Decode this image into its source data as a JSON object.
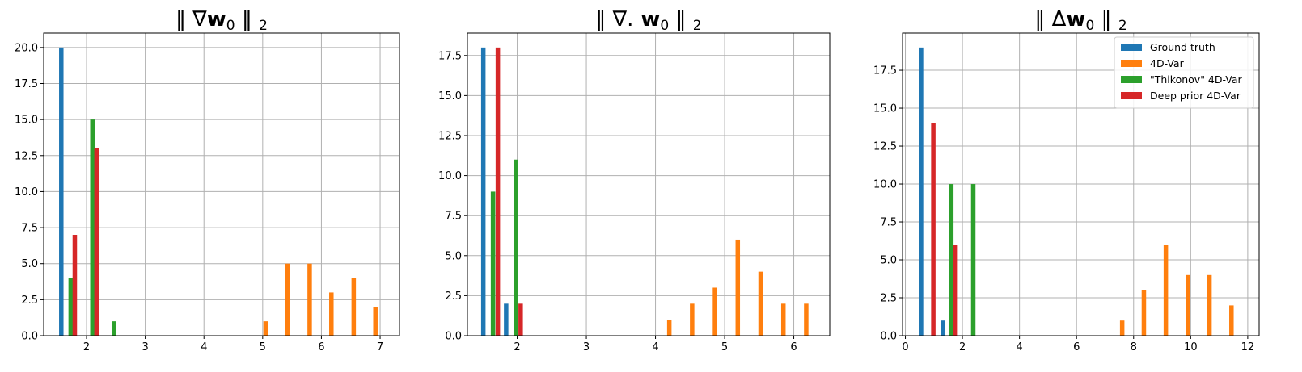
{
  "colors": {
    "ground_truth": "#1f77b4",
    "fourdvar": "#ff7f0e",
    "thikonov": "#2ca02c",
    "deep_prior": "#d62728",
    "grid": "#b0b0b0"
  },
  "chart_data": [
    {
      "type": "bar",
      "title": "‖ ∇w₀ ‖₂",
      "title_parts": {
        "pre": "‖ ∇",
        "bold": "w",
        "sub": "0",
        "mid": " ‖ ",
        "sub2": "2"
      },
      "xlim": [
        1.27,
        7.33
      ],
      "ylim": [
        0,
        21
      ],
      "xticks": [
        2,
        3,
        4,
        5,
        6,
        7
      ],
      "yticks": [
        0.0,
        2.5,
        5.0,
        7.5,
        10.0,
        12.5,
        15.0,
        17.5,
        20.0
      ],
      "grid": true,
      "legend": "none",
      "series": [
        {
          "name": "Ground truth",
          "color_key": "ground_truth",
          "x": [
            1.57
          ],
          "y": [
            20
          ]
        },
        {
          "name": "\"Thikonov\" 4D-Var",
          "color_key": "thikonov",
          "x": [
            1.73,
            2.1,
            2.47
          ],
          "y": [
            4,
            15,
            1
          ]
        },
        {
          "name": "Deep prior 4D-Var",
          "color_key": "deep_prior",
          "x": [
            1.8,
            2.17
          ],
          "y": [
            7,
            13
          ]
        },
        {
          "name": "4D-Var",
          "color_key": "fourdvar",
          "x": [
            5.05,
            5.42,
            5.8,
            6.17,
            6.55,
            6.92
          ],
          "y": [
            1,
            5,
            5,
            3,
            4,
            2
          ]
        }
      ]
    },
    {
      "type": "bar",
      "title": "‖ ∇. w₀ ‖₂",
      "title_parts": {
        "pre": "‖ ∇.",
        "bold": " w",
        "sub": "0",
        "mid": " ‖ ",
        "sub2": "2"
      },
      "xlim": [
        1.28,
        6.52
      ],
      "ylim": [
        0,
        18.9
      ],
      "xticks": [
        2,
        3,
        4,
        5,
        6
      ],
      "yticks": [
        0.0,
        2.5,
        5.0,
        7.5,
        10.0,
        12.5,
        15.0,
        17.5
      ],
      "grid": true,
      "legend": "none",
      "series": [
        {
          "name": "Ground truth",
          "color_key": "ground_truth",
          "x": [
            1.51,
            1.84
          ],
          "y": [
            18,
            2
          ]
        },
        {
          "name": "\"Thikonov\" 4D-Var",
          "color_key": "thikonov",
          "x": [
            1.65,
            1.98
          ],
          "y": [
            9,
            11
          ]
        },
        {
          "name": "Deep prior 4D-Var",
          "color_key": "deep_prior",
          "x": [
            1.72,
            2.05
          ],
          "y": [
            18,
            2
          ]
        },
        {
          "name": "4D-Var",
          "color_key": "fourdvar",
          "x": [
            4.2,
            4.53,
            4.86,
            5.19,
            5.52,
            5.85,
            6.18
          ],
          "y": [
            1,
            2,
            3,
            6,
            4,
            2,
            2
          ]
        }
      ]
    },
    {
      "type": "bar",
      "title": "‖ Δw₀ ‖₂",
      "title_parts": {
        "pre": "‖ Δ",
        "bold": "w",
        "sub": "0",
        "mid": " ‖ ",
        "sub2": "2"
      },
      "xlim": [
        -0.1,
        12.4
      ],
      "ylim": [
        0,
        19.95
      ],
      "xticks": [
        0,
        2,
        4,
        6,
        8,
        10,
        12
      ],
      "yticks": [
        0.0,
        2.5,
        5.0,
        7.5,
        10.0,
        12.5,
        15.0,
        17.5
      ],
      "grid": true,
      "legend": "top-right",
      "legend_entries": [
        "Ground truth",
        "4D-Var",
        "\"Thikonov\" 4D-Var",
        "Deep prior 4D-Var"
      ],
      "series": [
        {
          "name": "Ground truth",
          "color_key": "ground_truth",
          "x": [
            0.55,
            1.32
          ],
          "y": [
            19,
            1
          ]
        },
        {
          "name": "\"Thikonov\" 4D-Var",
          "color_key": "thikonov",
          "x": [
            1.61,
            2.38
          ],
          "y": [
            10,
            10
          ]
        },
        {
          "name": "Deep prior 4D-Var",
          "color_key": "deep_prior",
          "x": [
            0.98,
            1.76
          ],
          "y": [
            14,
            6
          ]
        },
        {
          "name": "4D-Var",
          "color_key": "fourdvar",
          "x": [
            7.6,
            8.36,
            9.13,
            9.9,
            10.66,
            11.43
          ],
          "y": [
            1,
            3,
            6,
            4,
            4,
            2
          ]
        }
      ]
    }
  ]
}
